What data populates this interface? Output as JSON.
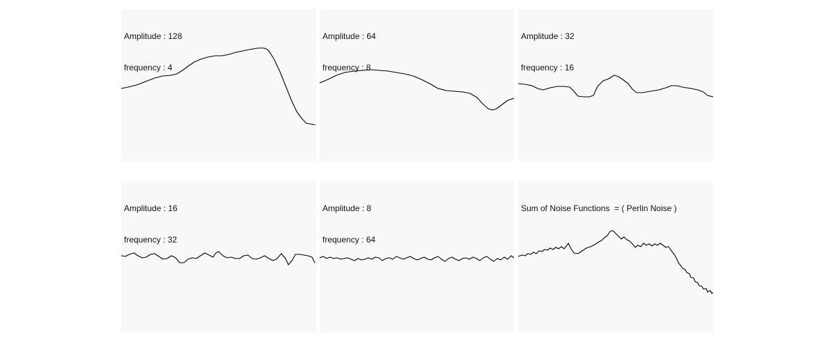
{
  "colors": {
    "panel_background": "#f8f8f8",
    "curve": "#000000"
  },
  "panels": [
    {
      "amplitude_label": "Amplitude : 128",
      "frequency_label": "frequency : 4",
      "title": ""
    },
    {
      "amplitude_label": "Amplitude : 64",
      "frequency_label": "frequency : 8",
      "title": ""
    },
    {
      "amplitude_label": "Amplitude : 32",
      "frequency_label": "frequency : 16",
      "title": ""
    },
    {
      "amplitude_label": "Amplitude : 16",
      "frequency_label": "frequency : 32",
      "title": ""
    },
    {
      "amplitude_label": "Amplitude : 8",
      "frequency_label": "frequency : 64",
      "title": ""
    },
    {
      "amplitude_label": "",
      "frequency_label": "",
      "title": "Sum of Noise Functions  = ( Perlin Noise )"
    }
  ]
}
